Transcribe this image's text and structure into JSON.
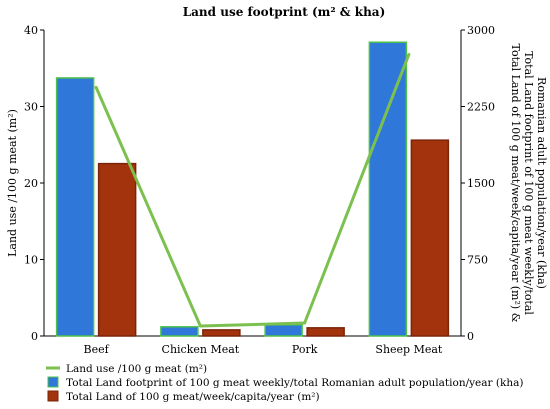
{
  "chart_data": {
    "type": "bar",
    "title": "Land use footprint (m² & kha)",
    "categories": [
      "Beef",
      "Chicken Meat",
      "Pork",
      "Sheep Meat"
    ],
    "ylabel_left": "Land use /100 g meat (m²)",
    "ylabel_right_lines": [
      "Total Land of 100 g meat/week/capita/year (m²) &",
      "Total Land footprint of 100 g meat weekly/total",
      "Romanian adult population/year (kha)"
    ],
    "ylim_left": [
      0,
      40
    ],
    "yticks_left": [
      0,
      10,
      20,
      30,
      40
    ],
    "ylim_right": [
      0,
      3000
    ],
    "yticks_right": [
      0,
      750,
      1500,
      2250,
      3000
    ],
    "legend_position": "bottom",
    "series": [
      {
        "name": "Land use /100 g meat (m²)",
        "kind": "line",
        "axis": "left",
        "color": "#7cc04f",
        "values": [
          32.5,
          1.3,
          1.7,
          36.8
        ]
      },
      {
        "name": "Total Land footprint of 100 g meat weekly/total Romanian adult population/year (kha)",
        "kind": "bar",
        "axis": "right",
        "color": "#2f77d9",
        "stroke": "#4cc04a",
        "values": [
          2530,
          90,
          110,
          2880
        ]
      },
      {
        "name": "Total Land of 100 g meat/week/capita/year (m²)",
        "kind": "bar",
        "axis": "right",
        "color": "#a3330d",
        "stroke": "#7a2508",
        "values": [
          1690,
          60,
          80,
          1920
        ]
      }
    ]
  }
}
